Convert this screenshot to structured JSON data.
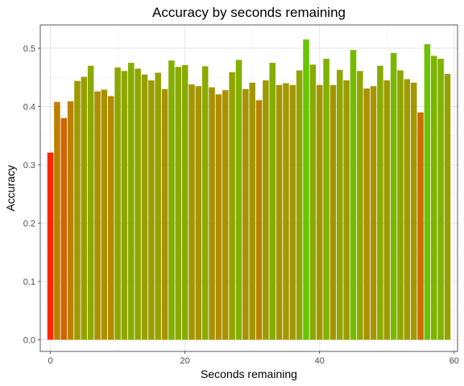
{
  "chart_data": {
    "type": "bar",
    "title": "Accuracy by seconds remaining",
    "xlabel": "Seconds remaining",
    "ylabel": "Accuracy",
    "xlim": [
      -1.5,
      60.5
    ],
    "ylim": [
      -0.02,
      0.54
    ],
    "xticks": [
      0,
      20,
      40,
      60
    ],
    "yticks": [
      0.0,
      0.1,
      0.2,
      0.3,
      0.4,
      0.5
    ],
    "ytick_labels": [
      "0.0",
      "0.1",
      "0.2",
      "0.3",
      "0.4",
      "0.5"
    ],
    "grid": true,
    "color_scale": {
      "low": "#ff2600",
      "mid": "#b38a00",
      "high": "#66c600"
    },
    "x": [
      0,
      1,
      2,
      3,
      4,
      5,
      6,
      7,
      8,
      9,
      10,
      11,
      12,
      13,
      14,
      15,
      16,
      17,
      18,
      19,
      20,
      21,
      22,
      23,
      24,
      25,
      26,
      27,
      28,
      29,
      30,
      31,
      32,
      33,
      34,
      35,
      36,
      37,
      38,
      39,
      40,
      41,
      42,
      43,
      44,
      45,
      46,
      47,
      48,
      49,
      50,
      51,
      52,
      53,
      54,
      55,
      56,
      57,
      58,
      59
    ],
    "values": [
      0.321,
      0.408,
      0.38,
      0.409,
      0.444,
      0.451,
      0.47,
      0.426,
      0.429,
      0.418,
      0.467,
      0.461,
      0.475,
      0.465,
      0.455,
      0.445,
      0.458,
      0.43,
      0.479,
      0.468,
      0.471,
      0.438,
      0.435,
      0.469,
      0.433,
      0.421,
      0.428,
      0.459,
      0.48,
      0.43,
      0.441,
      0.411,
      0.445,
      0.475,
      0.437,
      0.44,
      0.437,
      0.462,
      0.515,
      0.472,
      0.437,
      0.482,
      0.437,
      0.463,
      0.445,
      0.497,
      0.461,
      0.431,
      0.435,
      0.47,
      0.445,
      0.492,
      0.462,
      0.447,
      0.441,
      0.39,
      0.507,
      0.487,
      0.482,
      0.456
    ]
  }
}
